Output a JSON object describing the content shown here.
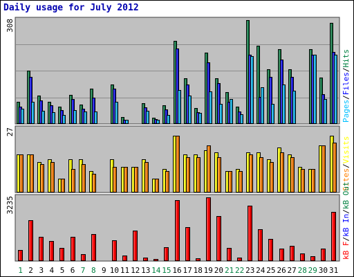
{
  "page": {
    "title": "Daily usage for July 2012"
  },
  "colors": {
    "background": "#c0c0c0",
    "page_bg": "#ffffff",
    "title": "#0000b0",
    "hits": "#008040",
    "files": "#0000ff",
    "pages": "#00c0ff",
    "visits": "#ffff00",
    "sites": "#ff8000",
    "kbytes": "#ff0000",
    "weekend_day_label": "#008040",
    "weekday_day_label": "#000000"
  },
  "chart_data": {
    "type": "bar",
    "title": "Daily usage for July 2012",
    "categories": [
      "1",
      "2",
      "3",
      "4",
      "5",
      "6",
      "7",
      "8",
      "9",
      "10",
      "11",
      "12",
      "13",
      "14",
      "15",
      "16",
      "17",
      "18",
      "19",
      "20",
      "21",
      "22",
      "23",
      "24",
      "25",
      "26",
      "27",
      "28",
      "29",
      "30",
      "31"
    ],
    "weekend_days": [
      "1",
      "7",
      "8",
      "14",
      "15",
      "21",
      "22",
      "28",
      "29"
    ],
    "panels": [
      {
        "id": "hits",
        "scale_label": "308",
        "ymax": 308,
        "legend": [
          "Pages",
          "/",
          "Files",
          "/",
          "Hits"
        ],
        "legend_colors": [
          "pages",
          "black",
          "files",
          "black",
          "hits"
        ],
        "series": [
          {
            "name": "Hits",
            "color_key": "hits",
            "values": [
              66,
              158,
              84,
              66,
              51,
              86,
              57,
              105,
              0,
              118,
              20,
              0,
              62,
              19,
              55,
              246,
              135,
              47,
              211,
              135,
              95,
              52,
              308,
              233,
              162,
              221,
              162,
              0,
              221,
              138,
              300
            ]
          },
          {
            "name": "Files",
            "color_key": "files",
            "values": [
              51,
              139,
              70,
              55,
              42,
              73,
              46,
              78,
              0,
              104,
              13,
              0,
              49,
              15,
              44,
              223,
              117,
              35,
              183,
              121,
              66,
              37,
              205,
              81,
              140,
              190,
              139,
              0,
              205,
              88,
              214
            ]
          },
          {
            "name": "Pages",
            "color_key": "pages",
            "values": [
              46,
              66,
              40,
              35,
              26,
              42,
              37,
              36,
              0,
              66,
              13,
              0,
              40,
              13,
              26,
              101,
              84,
              33,
              97,
              59,
              73,
              29,
              202,
              108,
              59,
              117,
              99,
              0,
              205,
              73,
              205
            ]
          }
        ]
      },
      {
        "id": "visits",
        "scale_label": "27",
        "ymax": 27,
        "legend": [
          "Sites",
          "/",
          "Visits"
        ],
        "legend_colors": [
          "sites",
          "black",
          "visits"
        ],
        "series": [
          {
            "name": "Visits",
            "color_key": "visits",
            "values": [
              16,
              16,
              13,
              14,
              6,
              14,
              14,
              9,
              0,
              14,
              11,
              11,
              14,
              6,
              10,
              24,
              16,
              16,
              18,
              17,
              9,
              10,
              17,
              17,
              14,
              19,
              16,
              11,
              10,
              20,
              24
            ]
          },
          {
            "name": "Sites",
            "color_key": "sites",
            "values": [
              16,
              16,
              12,
              13,
              6,
              10,
              12,
              8,
              0,
              11,
              11,
              11,
              13,
              6,
              9,
              24,
              15,
              15,
              20,
              15,
              9,
              9,
              16,
              15,
              13,
              17,
              15,
              10,
              10,
              20,
              21
            ]
          }
        ]
      },
      {
        "id": "kbytes",
        "scale_label": "3235",
        "ymax": 3235,
        "legend": [
          "kB F",
          "/",
          "kB In",
          "/",
          "kB Out"
        ],
        "legend_colors": [
          "kbytes",
          "black",
          "files",
          "black",
          "hits"
        ],
        "series": [
          {
            "name": "kB F",
            "color_key": "kbytes",
            "values": [
              565,
              2080,
              1230,
              1010,
              680,
              1220,
              360,
              1380,
              0,
              1060,
              280,
              1560,
              160,
              100,
              690,
              3100,
              1720,
              130,
              3235,
              2290,
              680,
              190,
              2820,
              1600,
              1120,
              630,
              790,
              380,
              230,
              640,
              2490
            ]
          }
        ]
      }
    ]
  }
}
